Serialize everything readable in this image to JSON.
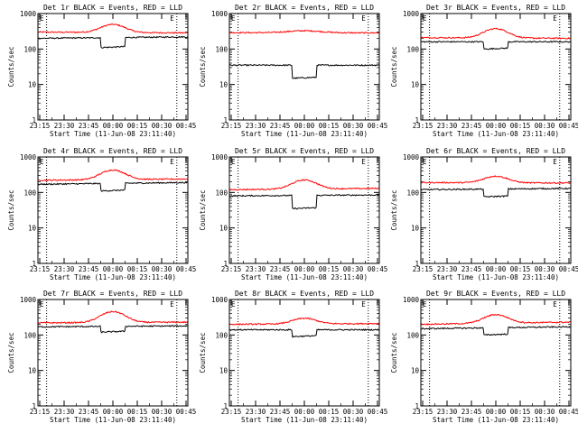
{
  "page": {
    "background": "#ffffff"
  },
  "colors": {
    "events": "#000000",
    "lld": "#ff0000",
    "axis": "#000000"
  },
  "chart_data": [
    {
      "type": "line",
      "title": "Det 1r BLACK = Events, RED = LLD",
      "xlabel": "Start Time (11-Jun-08 23:11:40)",
      "ylabel": "Counts/sec",
      "xticks": [
        "23:15",
        "23:30",
        "23:45",
        "00:00",
        "00:15",
        "00:30",
        "00:45"
      ],
      "ylim": [
        1,
        1000
      ],
      "yscale": "log",
      "yticks": [
        "1",
        "10",
        "100",
        "1000"
      ],
      "corner_labels": [
        "E",
        "E"
      ],
      "time_minutes": [
        0,
        95
      ],
      "markers_min": [
        5.5,
        88
      ],
      "series": [
        {
          "color": "red",
          "base": 300,
          "end": 285,
          "bump_peak": 500,
          "bump_center": 47.5,
          "bump_width": 7
        },
        {
          "color": "black",
          "base": 200,
          "end": 220,
          "dip_to": 110,
          "dip_range": [
            40,
            55
          ]
        }
      ]
    },
    {
      "type": "line",
      "title": "Det 2r BLACK = Events, RED = LLD",
      "xlabel": "Start Time (11-Jun-08 23:11:40)",
      "ylabel": "Counts/sec",
      "xticks": [
        "23:15",
        "23:30",
        "23:45",
        "00:00",
        "00:15",
        "00:30",
        "00:45"
      ],
      "ylim": [
        1,
        1000
      ],
      "yscale": "log",
      "yticks": [
        "1",
        "10",
        "100",
        "1000"
      ],
      "corner_labels": [
        "E",
        "E"
      ],
      "time_minutes": [
        0,
        95
      ],
      "markers_min": [
        5.5,
        88
      ],
      "series": [
        {
          "color": "red",
          "base": 290,
          "end": 285,
          "bump_peak": 330,
          "bump_center": 47.5,
          "bump_width": 10
        },
        {
          "color": "black",
          "base": 35,
          "end": 35,
          "dip_to": 15,
          "dip_range": [
            40,
            55
          ]
        }
      ]
    },
    {
      "type": "line",
      "title": "Det 3r BLACK = Events, RED = LLD",
      "xlabel": "Start Time (11-Jun-08 23:11:40)",
      "ylabel": "Counts/sec",
      "xticks": [
        "23:15",
        "23:30",
        "23:45",
        "00:00",
        "00:15",
        "00:30",
        "00:45"
      ],
      "ylim": [
        1,
        1000
      ],
      "yscale": "log",
      "yticks": [
        "1",
        "10",
        "100",
        "1000"
      ],
      "corner_labels": [
        "E",
        "E"
      ],
      "time_minutes": [
        0,
        95
      ],
      "markers_min": [
        5.5,
        88
      ],
      "series": [
        {
          "color": "red",
          "base": 210,
          "end": 200,
          "bump_peak": 380,
          "bump_center": 47.5,
          "bump_width": 7
        },
        {
          "color": "black",
          "base": 160,
          "end": 160,
          "dip_to": 100,
          "dip_range": [
            40,
            55
          ]
        }
      ]
    },
    {
      "type": "line",
      "title": "Det 4r BLACK = Events, RED = LLD",
      "xlabel": "Start Time (11-Jun-08 23:11:40)",
      "ylabel": "Counts/sec",
      "xticks": [
        "23:15",
        "23:30",
        "23:45",
        "00:00",
        "00:15",
        "00:30",
        "00:45"
      ],
      "ylim": [
        1,
        1000
      ],
      "yscale": "log",
      "yticks": [
        "1",
        "10",
        "100",
        "1000"
      ],
      "corner_labels": [
        "E",
        "E"
      ],
      "time_minutes": [
        0,
        95
      ],
      "markers_min": [
        5.5,
        88
      ],
      "series": [
        {
          "color": "red",
          "base": 220,
          "end": 240,
          "bump_peak": 420,
          "bump_center": 47.5,
          "bump_width": 7
        },
        {
          "color": "black",
          "base": 170,
          "end": 190,
          "dip_to": 110,
          "dip_range": [
            40,
            55
          ]
        }
      ]
    },
    {
      "type": "line",
      "title": "Det 5r BLACK = Events, RED = LLD",
      "xlabel": "Start Time (11-Jun-08 23:11:40)",
      "ylabel": "Counts/sec",
      "xticks": [
        "23:15",
        "23:30",
        "23:45",
        "00:00",
        "00:15",
        "00:30",
        "00:45"
      ],
      "ylim": [
        1,
        1000
      ],
      "yscale": "log",
      "yticks": [
        "1",
        "10",
        "100",
        "1000"
      ],
      "corner_labels": [
        "E",
        "E"
      ],
      "time_minutes": [
        0,
        95
      ],
      "markers_min": [
        5.5,
        88
      ],
      "series": [
        {
          "color": "red",
          "base": 120,
          "end": 130,
          "bump_peak": 220,
          "bump_center": 47.5,
          "bump_width": 7
        },
        {
          "color": "black",
          "base": 80,
          "end": 85,
          "dip_to": 35,
          "dip_range": [
            40,
            55
          ]
        }
      ]
    },
    {
      "type": "line",
      "title": "Det 6r BLACK = Events, RED = LLD",
      "xlabel": "Start Time (11-Jun-08 23:11:40)",
      "ylabel": "Counts/sec",
      "xticks": [
        "23:15",
        "23:30",
        "23:45",
        "00:00",
        "00:15",
        "00:30",
        "00:45"
      ],
      "ylim": [
        1,
        1000
      ],
      "yscale": "log",
      "yticks": [
        "1",
        "10",
        "100",
        "1000"
      ],
      "corner_labels": [
        "E",
        "E"
      ],
      "time_minutes": [
        0,
        95
      ],
      "markers_min": [
        5.5,
        88
      ],
      "series": [
        {
          "color": "red",
          "base": 190,
          "end": 185,
          "bump_peak": 290,
          "bump_center": 47.5,
          "bump_width": 7
        },
        {
          "color": "black",
          "base": 120,
          "end": 130,
          "dip_to": 75,
          "dip_range": [
            40,
            55
          ]
        }
      ]
    },
    {
      "type": "line",
      "title": "Det 7r BLACK = Events, RED = LLD",
      "xlabel": "Start Time (11-Jun-08 23:11:40)",
      "ylabel": "Counts/sec",
      "xticks": [
        "23:15",
        "23:30",
        "23:45",
        "00:00",
        "00:15",
        "00:30",
        "00:45"
      ],
      "ylim": [
        1,
        1000
      ],
      "yscale": "log",
      "yticks": [
        "1",
        "10",
        "100",
        "1000"
      ],
      "corner_labels": [
        "E",
        "E"
      ],
      "time_minutes": [
        0,
        95
      ],
      "markers_min": [
        5.5,
        88
      ],
      "series": [
        {
          "color": "red",
          "base": 220,
          "end": 230,
          "bump_peak": 450,
          "bump_center": 47.5,
          "bump_width": 7
        },
        {
          "color": "black",
          "base": 170,
          "end": 180,
          "dip_to": 120,
          "dip_range": [
            40,
            55
          ]
        }
      ]
    },
    {
      "type": "line",
      "title": "Det 8r BLACK = Events, RED = LLD",
      "xlabel": "Start Time (11-Jun-08 23:11:40)",
      "ylabel": "Counts/sec",
      "xticks": [
        "23:15",
        "23:30",
        "23:45",
        "00:00",
        "00:15",
        "00:30",
        "00:45"
      ],
      "ylim": [
        1,
        1000
      ],
      "yscale": "log",
      "yticks": [
        "1",
        "10",
        "100",
        "1000"
      ],
      "corner_labels": [
        "E",
        "E"
      ],
      "time_minutes": [
        0,
        95
      ],
      "markers_min": [
        5.5,
        88
      ],
      "series": [
        {
          "color": "red",
          "base": 200,
          "end": 210,
          "bump_peak": 290,
          "bump_center": 47.5,
          "bump_width": 7
        },
        {
          "color": "black",
          "base": 140,
          "end": 140,
          "dip_to": 90,
          "dip_range": [
            40,
            55
          ]
        }
      ]
    },
    {
      "type": "line",
      "title": "Det 9r BLACK = Events, RED = LLD",
      "xlabel": "Start Time (11-Jun-08 23:11:40)",
      "ylabel": "Counts/sec",
      "xticks": [
        "23:15",
        "23:30",
        "23:45",
        "00:00",
        "00:15",
        "00:30",
        "00:45"
      ],
      "ylim": [
        1,
        1000
      ],
      "yscale": "log",
      "yticks": [
        "1",
        "10",
        "100",
        "1000"
      ],
      "corner_labels": [
        "E",
        "E"
      ],
      "time_minutes": [
        0,
        95
      ],
      "markers_min": [
        5.5,
        88
      ],
      "series": [
        {
          "color": "red",
          "base": 200,
          "end": 230,
          "bump_peak": 360,
          "bump_center": 47.5,
          "bump_width": 7
        },
        {
          "color": "black",
          "base": 150,
          "end": 170,
          "dip_to": 100,
          "dip_range": [
            40,
            55
          ]
        }
      ]
    }
  ]
}
